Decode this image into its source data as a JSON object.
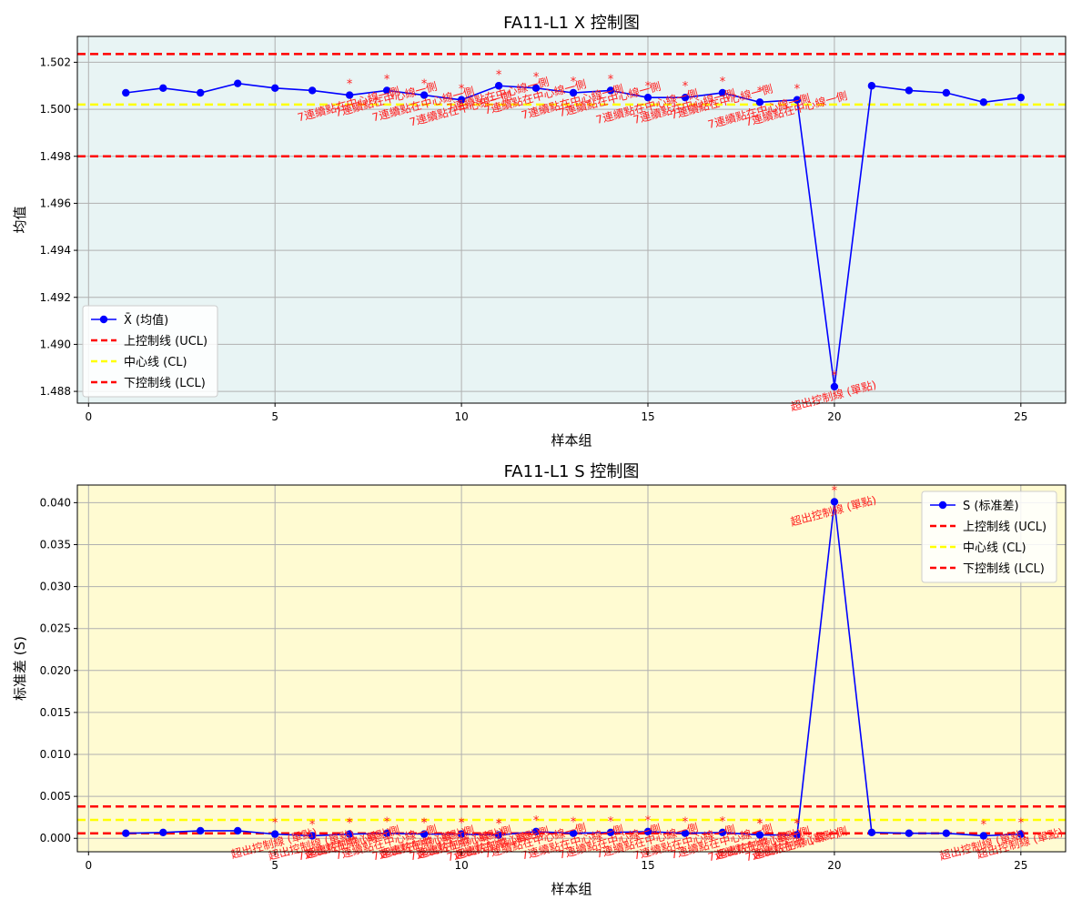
{
  "chart_data": [
    {
      "type": "line",
      "title": "FA11-L1 X 控制图",
      "xlabel": "样本组",
      "ylabel": "均值",
      "xlim": [
        -0.3,
        26.2
      ],
      "ylim": [
        1.4875,
        1.5031
      ],
      "xticks": [
        0,
        5,
        10,
        15,
        20,
        25
      ],
      "yticks": [
        1.488,
        1.49,
        1.492,
        1.494,
        1.496,
        1.498,
        1.5,
        1.502
      ],
      "ytick_labels": [
        "1.488",
        "1.490",
        "1.492",
        "1.494",
        "1.496",
        "1.498",
        "1.500",
        "1.502"
      ],
      "grid": true,
      "background": "#e8f4f4",
      "legend_position": "lower-left",
      "legend": [
        {
          "label": "X̄ (均值)",
          "type": "series"
        },
        {
          "label": "上控制线 (UCL)",
          "type": "line",
          "color": "#ff0000"
        },
        {
          "label": "中心线 (CL)",
          "type": "line",
          "color": "#ffff00"
        },
        {
          "label": "下控制线 (LCL)",
          "type": "line",
          "color": "#ff0000"
        }
      ],
      "series": [
        {
          "name": "X̄ (均值)",
          "color": "#0000ff",
          "x": [
            1,
            2,
            3,
            4,
            5,
            6,
            7,
            8,
            9,
            10,
            11,
            12,
            13,
            14,
            15,
            16,
            17,
            18,
            19,
            20,
            21,
            22,
            23,
            24,
            25
          ],
          "values": [
            1.5007,
            1.5009,
            1.5007,
            1.5011,
            1.5009,
            1.5008,
            1.5006,
            1.5008,
            1.5006,
            1.5004,
            1.501,
            1.5009,
            1.5007,
            1.5008,
            1.5005,
            1.5005,
            1.5007,
            1.5003,
            1.5004,
            1.4882,
            1.501,
            1.5008,
            1.5007,
            1.5003,
            1.5005
          ]
        }
      ],
      "control_lines": {
        "ucl": 1.50235,
        "cl": 1.5002,
        "lcl": 1.498
      },
      "annotations": [
        {
          "x": 7,
          "y": 1.5006,
          "text": "7連續點在中心線一側"
        },
        {
          "x": 8,
          "y": 1.5008,
          "text": "7連續點在中心線一側"
        },
        {
          "x": 9,
          "y": 1.5006,
          "text": "7連續點在中心線一側"
        },
        {
          "x": 10,
          "y": 1.5004,
          "text": "7連續點在中心線一側"
        },
        {
          "x": 11,
          "y": 1.501,
          "text": "7連續點在中心線一側"
        },
        {
          "x": 12,
          "y": 1.5009,
          "text": "7連續點在中心線一側"
        },
        {
          "x": 13,
          "y": 1.5007,
          "text": "7連續點在中心線一側"
        },
        {
          "x": 14,
          "y": 1.5008,
          "text": "7連續點在中心線一側"
        },
        {
          "x": 15,
          "y": 1.5005,
          "text": "7連續點在中心線一側"
        },
        {
          "x": 16,
          "y": 1.5005,
          "text": "7連續點在中心線一側"
        },
        {
          "x": 17,
          "y": 1.5007,
          "text": "7連續點在中心線一側"
        },
        {
          "x": 18,
          "y": 1.5003,
          "text": "7連續點在中心線一側"
        },
        {
          "x": 19,
          "y": 1.5004,
          "text": "7連續點在中心線一側"
        },
        {
          "x": 20,
          "y": 1.4882,
          "text": "超出控制線 (單點)"
        }
      ]
    },
    {
      "type": "line",
      "title": "FA11-L1 S 控制图",
      "xlabel": "样本组",
      "ylabel": "标准差 (S)",
      "xlim": [
        -0.3,
        26.2
      ],
      "ylim": [
        -0.0016,
        0.0421
      ],
      "xticks": [
        0,
        5,
        10,
        15,
        20,
        25
      ],
      "yticks": [
        0,
        0.005,
        0.01,
        0.015,
        0.02,
        0.025,
        0.03,
        0.035,
        0.04
      ],
      "ytick_labels": [
        "0.000",
        "0.005",
        "0.010",
        "0.015",
        "0.020",
        "0.025",
        "0.030",
        "0.035",
        "0.040"
      ],
      "grid": true,
      "background": "#fffbd2",
      "legend_position": "upper-right",
      "legend": [
        {
          "label": "S (标准差)",
          "type": "series"
        },
        {
          "label": "上控制线 (UCL)",
          "type": "line",
          "color": "#ff0000"
        },
        {
          "label": "中心线 (CL)",
          "type": "line",
          "color": "#ffff00"
        },
        {
          "label": "下控制线 (LCL)",
          "type": "line",
          "color": "#ff0000"
        }
      ],
      "series": [
        {
          "name": "S (标准差)",
          "color": "#0000ff",
          "x": [
            1,
            2,
            3,
            4,
            5,
            6,
            7,
            8,
            9,
            10,
            11,
            12,
            13,
            14,
            15,
            16,
            17,
            18,
            19,
            20,
            21,
            22,
            23,
            24,
            25
          ],
          "values": [
            0.0006,
            0.0007,
            0.0009,
            0.0009,
            0.0005,
            0.0003,
            0.0005,
            0.0006,
            0.0005,
            0.0005,
            0.0004,
            0.0008,
            0.0006,
            0.0007,
            0.0008,
            0.0006,
            0.0007,
            0.0004,
            0.0004,
            0.0401,
            0.0007,
            0.0006,
            0.0006,
            0.0003,
            0.0005
          ]
        }
      ],
      "control_lines": {
        "ucl": 0.0038,
        "cl": 0.0022,
        "lcl": 0.0006
      },
      "annotations": [
        {
          "x": 5,
          "y": 0.0005,
          "text": "超出控制線 (單點)"
        },
        {
          "x": 6,
          "y": 0.0003,
          "text": "超出控制線 (單點)"
        },
        {
          "x": 7,
          "y": 0.0005,
          "text": "超出控制線 (單點)"
        },
        {
          "x": 7,
          "y": 0.0005,
          "text": "7連續點在中心線一側"
        },
        {
          "x": 8,
          "y": 0.0006,
          "text": "7連續點在中心線一側"
        },
        {
          "x": 9,
          "y": 0.0005,
          "text": "超出控制線 (單點)"
        },
        {
          "x": 9,
          "y": 0.0005,
          "text": "7連續點在中心線一側"
        },
        {
          "x": 10,
          "y": 0.0005,
          "text": "超出控制線 (單點)"
        },
        {
          "x": 10,
          "y": 0.0005,
          "text": "7連續點在中心線一側"
        },
        {
          "x": 11,
          "y": 0.0004,
          "text": "超出控制線 (單點)"
        },
        {
          "x": 11,
          "y": 0.0004,
          "text": "7連續點在中心線一側"
        },
        {
          "x": 12,
          "y": 0.0008,
          "text": "7連續點在中心線一側"
        },
        {
          "x": 13,
          "y": 0.0006,
          "text": "7連續點在中心線一側"
        },
        {
          "x": 14,
          "y": 0.0007,
          "text": "7連續點在中心線一側"
        },
        {
          "x": 15,
          "y": 0.0008,
          "text": "7連續點在中心線一側"
        },
        {
          "x": 16,
          "y": 0.0006,
          "text": "7連續點在中心線一側"
        },
        {
          "x": 17,
          "y": 0.0007,
          "text": "7連續點在中心線一側"
        },
        {
          "x": 18,
          "y": 0.0004,
          "text": "超出控制線 (單點)"
        },
        {
          "x": 18,
          "y": 0.0004,
          "text": "7連續點在中心線一側"
        },
        {
          "x": 19,
          "y": 0.0004,
          "text": "超出控制線 (單點)"
        },
        {
          "x": 19,
          "y": 0.0004,
          "text": "7連續點在中心線一側"
        },
        {
          "x": 20,
          "y": 0.0401,
          "text": "超出控制線 (單點)"
        },
        {
          "x": 24,
          "y": 0.0003,
          "text": "超出控制線 (單點)"
        },
        {
          "x": 25,
          "y": 0.0005,
          "text": "超出控制線 (單點)"
        }
      ]
    }
  ]
}
